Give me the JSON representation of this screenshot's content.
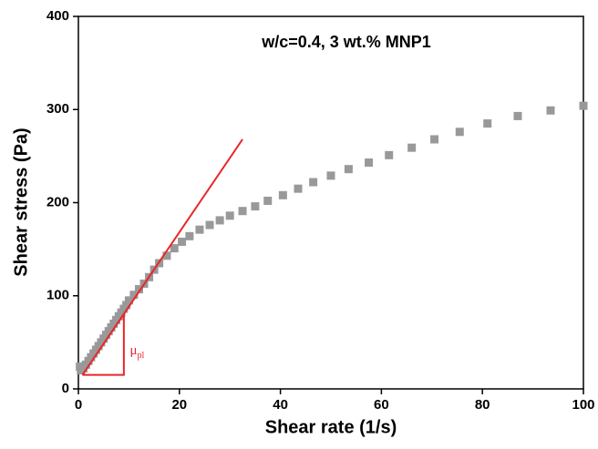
{
  "chart_data": {
    "type": "scatter",
    "title": "w/c=0.4, 3 wt.% MNP1",
    "x_label": "Shear rate (1/s)",
    "y_label": "Shear stress (Pa)",
    "xlim": [
      0,
      100
    ],
    "xticks": [
      0,
      20,
      40,
      60,
      80,
      100
    ],
    "ylim": [
      0,
      400
    ],
    "yticks": [
      0,
      100,
      200,
      300,
      400
    ],
    "series": [
      {
        "color": "#999999",
        "x": [
          0.3,
          0.5,
          1,
          1.5,
          2,
          2.5,
          3,
          3.5,
          4,
          4.5,
          5,
          5.5,
          6,
          6.5,
          7,
          7.5,
          8,
          8.5,
          9,
          9.5,
          10,
          11,
          12,
          13,
          14,
          15,
          16,
          17.5,
          19,
          20.5,
          22,
          24,
          26,
          28,
          30,
          32.5,
          35,
          37.5,
          40.5,
          43.5,
          46.5,
          50,
          53.5,
          57.5,
          61.5,
          66,
          70.5,
          75.5,
          81,
          87,
          93.5,
          100
        ],
        "values": [
          24,
          20,
          22,
          26,
          30,
          34,
          38,
          42,
          46,
          50,
          54,
          58,
          62,
          66,
          70,
          74,
          78,
          82,
          86,
          90,
          95,
          101,
          107,
          113,
          120,
          128,
          135,
          143,
          151,
          158,
          164,
          171,
          176,
          181,
          186,
          191,
          196,
          202,
          208,
          215,
          222,
          229,
          236,
          243,
          251,
          259,
          268,
          276,
          285,
          293,
          299,
          304
        ]
      }
    ],
    "reference_lines": [
      {
        "color": "#e8262b",
        "x": [
          0.8,
          32.5
        ],
        "y": [
          15,
          268
        ]
      },
      {
        "color": "#e8262b",
        "x": [
          0.8,
          9,
          9
        ],
        "y": [
          15,
          15,
          80
        ]
      }
    ],
    "annotation": {
      "text": "μ",
      "subscript": "pl",
      "x": 10.2,
      "y": 40,
      "color": "#e8262b"
    }
  }
}
